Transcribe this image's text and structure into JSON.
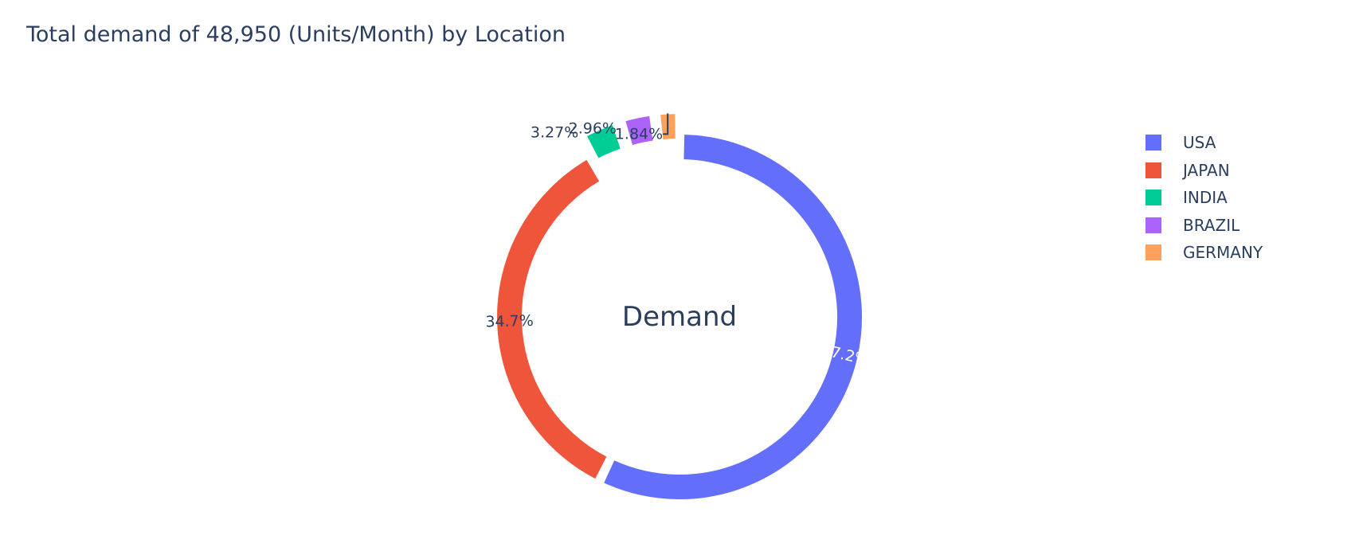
{
  "chart_data": {
    "type": "pie",
    "hole": true,
    "title": "Total demand of 48,950 (Units/Month) by Location",
    "center_label": "Demand",
    "sort": "descending",
    "direction": "clockwise",
    "start_angle": 0,
    "slices": [
      {
        "label": "USA",
        "percent": 57.2,
        "percent_text": "57.2%",
        "color": "#636efa",
        "pulled": false,
        "text_position": "inside",
        "text_color": "#ffffff"
      },
      {
        "label": "JAPAN",
        "percent": 34.7,
        "percent_text": "34.7%",
        "color": "#ef553b",
        "pulled": false,
        "text_position": "inside",
        "text_color": "#2a3f5f"
      },
      {
        "label": "INDIA",
        "percent": 3.27,
        "percent_text": "3.27%",
        "color": "#00cc96",
        "pulled": true,
        "text_position": "outside",
        "text_color": "#2a3f5f"
      },
      {
        "label": "BRAZIL",
        "percent": 2.96,
        "percent_text": "2.96%",
        "color": "#ab63fa",
        "pulled": true,
        "text_position": "outside",
        "text_color": "#2a3f5f"
      },
      {
        "label": "GERMANY",
        "percent": 1.84,
        "percent_text": "1.84%",
        "color": "#ffa15a",
        "pulled": true,
        "text_position": "outside",
        "text_color": "#2a3f5f"
      }
    ],
    "legend": {
      "placement": "top-right",
      "items": [
        "USA",
        "JAPAN",
        "INDIA",
        "BRAZIL",
        "GERMANY"
      ]
    },
    "text_color": "#2a3f5f"
  }
}
